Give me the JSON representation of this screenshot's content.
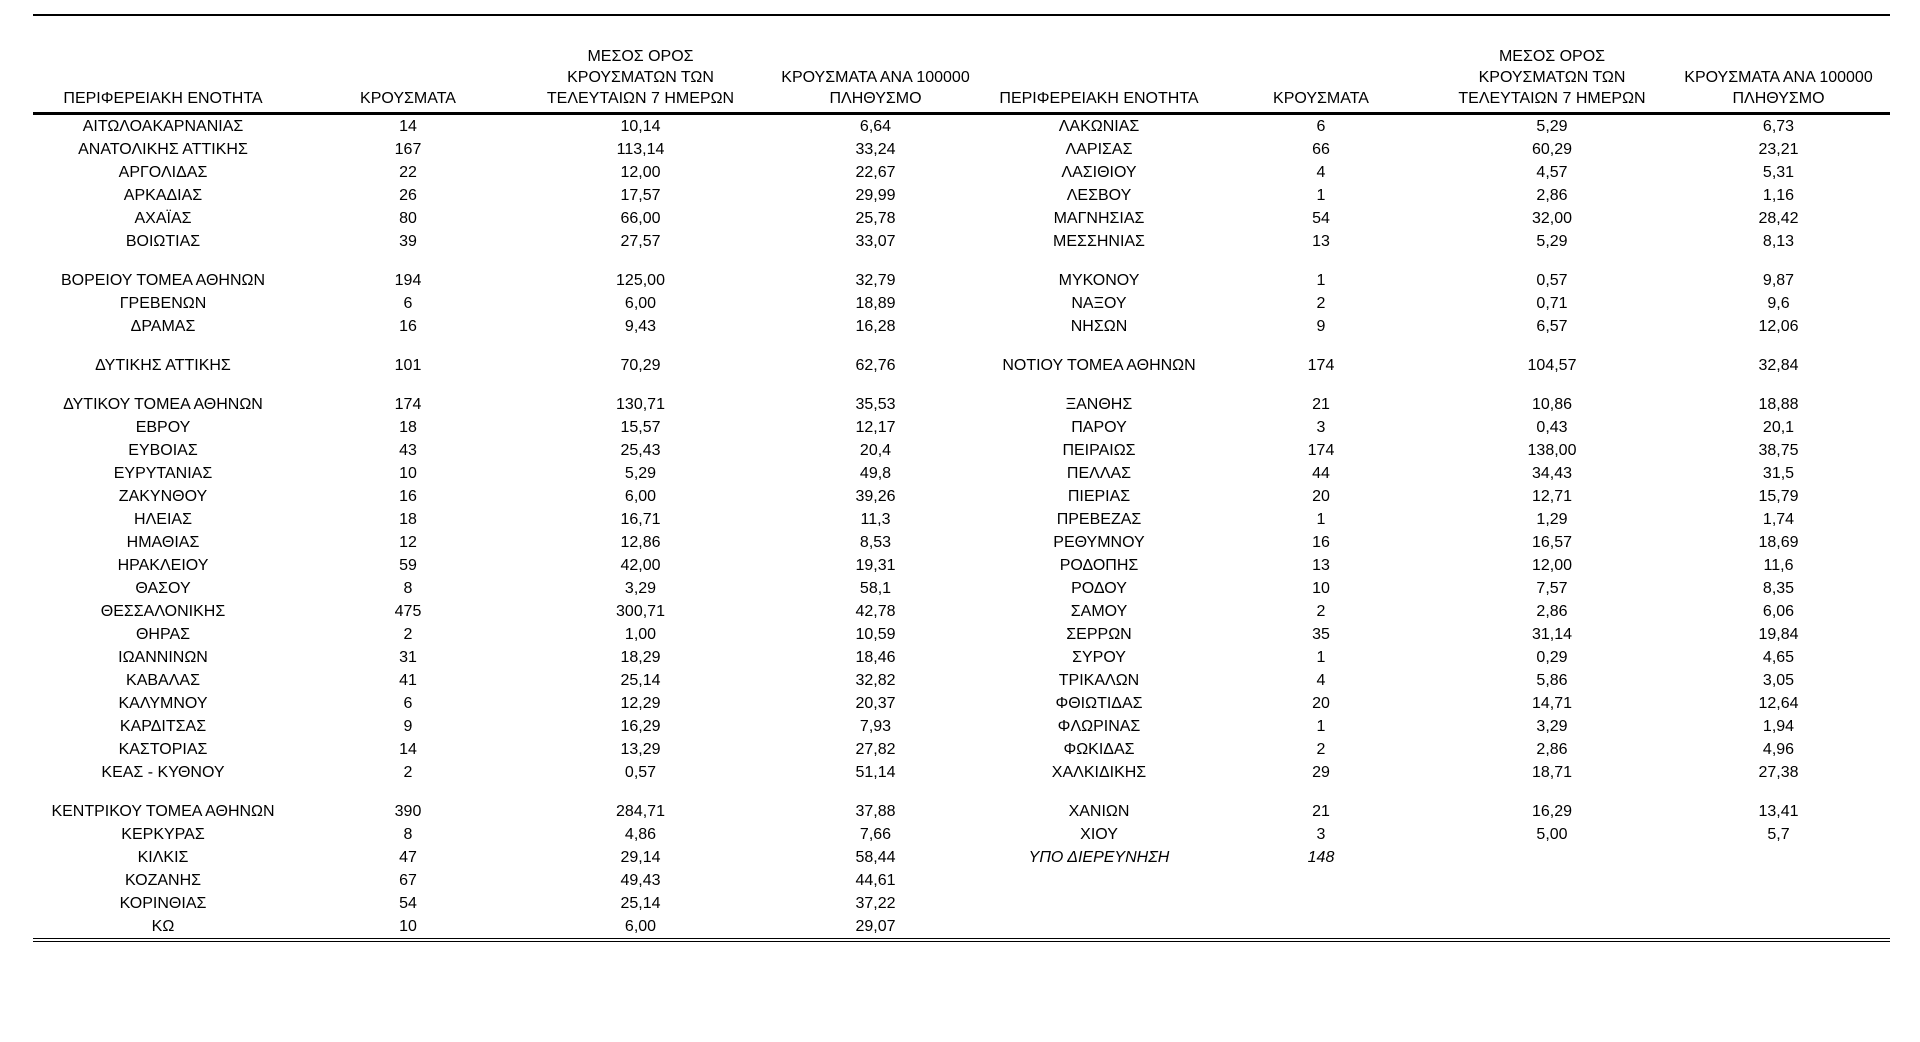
{
  "document": {
    "language": "el",
    "description_colors": {
      "text": "#000000",
      "background": "#ffffff",
      "border": "#000000"
    }
  },
  "table": {
    "column_headers": {
      "region": "ΠΕΡΙΦΕΡΕΙΑΚΗ ΕΝΟΤΗΤΑ",
      "cases": "ΚΡΟΥΣΜΑΤΑ",
      "avg7_lines": [
        "ΜΕΣΟΣ ΟΡΟΣ",
        "ΚΡΟΥΣΜΑΤΩΝ ΤΩΝ",
        "ΤΕΛΕΥΤΑΙΩΝ 7 ΗΜΕΡΩΝ"
      ],
      "per100k_lines": [
        "ΚΡΟΥΣΜΑΤΑ ΑΝΑ 100000",
        "ΠΛΗΘΥΣΜΟ"
      ]
    },
    "rows": [
      {
        "c": [
          "ΑΙΤΩΛΟΑΚΑΡΝΑΝΙΑΣ",
          "14",
          "10,14",
          "6,64",
          "ΛΑΚΩΝΙΑΣ",
          "6",
          "5,29",
          "6,73"
        ]
      },
      {
        "c": [
          "ΑΝΑΤΟΛΙΚΗΣ ΑΤΤΙΚΗΣ",
          "167",
          "113,14",
          "33,24",
          "ΛΑΡΙΣΑΣ",
          "66",
          "60,29",
          "23,21"
        ]
      },
      {
        "c": [
          "ΑΡΓΟΛΙΔΑΣ",
          "22",
          "12,00",
          "22,67",
          "ΛΑΣΙΘΙΟΥ",
          "4",
          "4,57",
          "5,31"
        ]
      },
      {
        "c": [
          "ΑΡΚΑΔΙΑΣ",
          "26",
          "17,57",
          "29,99",
          "ΛΕΣΒΟΥ",
          "1",
          "2,86",
          "1,16"
        ]
      },
      {
        "c": [
          "ΑΧΑΪΑΣ",
          "80",
          "66,00",
          "25,78",
          "ΜΑΓΝΗΣΙΑΣ",
          "54",
          "32,00",
          "28,42"
        ]
      },
      {
        "c": [
          "ΒΟΙΩΤΙΑΣ",
          "39",
          "27,57",
          "33,07",
          "ΜΕΣΣΗΝΙΑΣ",
          "13",
          "5,29",
          "8,13"
        ]
      },
      {
        "spacer": true
      },
      {
        "c": [
          "ΒΟΡΕΙΟΥ ΤΟΜΕΑ ΑΘΗΝΩΝ",
          "194",
          "125,00",
          "32,79",
          "ΜΥΚΟΝΟΥ",
          "1",
          "0,57",
          "9,87"
        ]
      },
      {
        "c": [
          "ΓΡΕΒΕΝΩΝ",
          "6",
          "6,00",
          "18,89",
          "ΝΑΞΟΥ",
          "2",
          "0,71",
          "9,6"
        ]
      },
      {
        "c": [
          "ΔΡΑΜΑΣ",
          "16",
          "9,43",
          "16,28",
          "ΝΗΣΩΝ",
          "9",
          "6,57",
          "12,06"
        ]
      },
      {
        "spacer": true
      },
      {
        "c": [
          "ΔΥΤΙΚΗΣ ΑΤΤΙΚΗΣ",
          "101",
          "70,29",
          "62,76",
          "ΝΟΤΙΟΥ ΤΟΜΕΑ ΑΘΗΝΩΝ",
          "174",
          "104,57",
          "32,84"
        ]
      },
      {
        "spacer": true
      },
      {
        "c": [
          "ΔΥΤΙΚΟΥ ΤΟΜΕΑ ΑΘΗΝΩΝ",
          "174",
          "130,71",
          "35,53",
          "ΞΑΝΘΗΣ",
          "21",
          "10,86",
          "18,88"
        ]
      },
      {
        "c": [
          "ΕΒΡΟΥ",
          "18",
          "15,57",
          "12,17",
          "ΠΑΡΟΥ",
          "3",
          "0,43",
          "20,1"
        ]
      },
      {
        "c": [
          "ΕΥΒΟΙΑΣ",
          "43",
          "25,43",
          "20,4",
          "ΠΕΙΡΑΙΩΣ",
          "174",
          "138,00",
          "38,75"
        ]
      },
      {
        "c": [
          "ΕΥΡΥΤΑΝΙΑΣ",
          "10",
          "5,29",
          "49,8",
          "ΠΕΛΛΑΣ",
          "44",
          "34,43",
          "31,5"
        ]
      },
      {
        "c": [
          "ΖΑΚΥΝΘΟΥ",
          "16",
          "6,00",
          "39,26",
          "ΠΙΕΡΙΑΣ",
          "20",
          "12,71",
          "15,79"
        ]
      },
      {
        "c": [
          "ΗΛΕΙΑΣ",
          "18",
          "16,71",
          "11,3",
          "ΠΡΕΒΕΖΑΣ",
          "1",
          "1,29",
          "1,74"
        ]
      },
      {
        "c": [
          "ΗΜΑΘΙΑΣ",
          "12",
          "12,86",
          "8,53",
          "ΡΕΘΥΜΝΟΥ",
          "16",
          "16,57",
          "18,69"
        ]
      },
      {
        "c": [
          "ΗΡΑΚΛΕΙΟΥ",
          "59",
          "42,00",
          "19,31",
          "ΡΟΔΟΠΗΣ",
          "13",
          "12,00",
          "11,6"
        ]
      },
      {
        "c": [
          "ΘΑΣΟΥ",
          "8",
          "3,29",
          "58,1",
          "ΡΟΔΟΥ",
          "10",
          "7,57",
          "8,35"
        ]
      },
      {
        "c": [
          "ΘΕΣΣΑΛΟΝΙΚΗΣ",
          "475",
          "300,71",
          "42,78",
          "ΣΑΜΟΥ",
          "2",
          "2,86",
          "6,06"
        ]
      },
      {
        "c": [
          "ΘΗΡΑΣ",
          "2",
          "1,00",
          "10,59",
          "ΣΕΡΡΩΝ",
          "35",
          "31,14",
          "19,84"
        ]
      },
      {
        "c": [
          "ΙΩΑΝΝΙΝΩΝ",
          "31",
          "18,29",
          "18,46",
          "ΣΥΡΟΥ",
          "1",
          "0,29",
          "4,65"
        ]
      },
      {
        "c": [
          "ΚΑΒΑΛΑΣ",
          "41",
          "25,14",
          "32,82",
          "ΤΡΙΚΑΛΩΝ",
          "4",
          "5,86",
          "3,05"
        ]
      },
      {
        "c": [
          "ΚΑΛΥΜΝΟΥ",
          "6",
          "12,29",
          "20,37",
          "ΦΘΙΩΤΙΔΑΣ",
          "20",
          "14,71",
          "12,64"
        ]
      },
      {
        "c": [
          "ΚΑΡΔΙΤΣΑΣ",
          "9",
          "16,29",
          "7,93",
          "ΦΛΩΡΙΝΑΣ",
          "1",
          "3,29",
          "1,94"
        ]
      },
      {
        "c": [
          "ΚΑΣΤΟΡΙΑΣ",
          "14",
          "13,29",
          "27,82",
          "ΦΩΚΙΔΑΣ",
          "2",
          "2,86",
          "4,96"
        ]
      },
      {
        "c": [
          "ΚΕΑΣ - ΚΥΘΝΟΥ",
          "2",
          "0,57",
          "51,14",
          "ΧΑΛΚΙΔΙΚΗΣ",
          "29",
          "18,71",
          "27,38"
        ]
      },
      {
        "spacer": true
      },
      {
        "c": [
          "ΚΕΝΤΡΙΚΟΥ ΤΟΜΕΑ ΑΘΗΝΩΝ",
          "390",
          "284,71",
          "37,88",
          "ΧΑΝΙΩΝ",
          "21",
          "16,29",
          "13,41"
        ]
      },
      {
        "c": [
          "ΚΕΡΚΥΡΑΣ",
          "8",
          "4,86",
          "7,66",
          "ΧΙΟΥ",
          "3",
          "5,00",
          "5,7"
        ]
      },
      {
        "c": [
          "ΚΙΛΚΙΣ",
          "47",
          "29,14",
          "58,44",
          "ΥΠΟ ΔΙΕΡΕΥΝΗΣΗ",
          "148",
          "",
          ""
        ],
        "it": true
      },
      {
        "c": [
          "ΚΟΖΑΝΗΣ",
          "67",
          "49,43",
          "44,61",
          "",
          "",
          "",
          ""
        ]
      },
      {
        "c": [
          "ΚΟΡΙΝΘΙΑΣ",
          "54",
          "25,14",
          "37,22",
          "",
          "",
          "",
          ""
        ]
      },
      {
        "c": [
          "ΚΩ",
          "10",
          "6,00",
          "29,07",
          "",
          "",
          "",
          ""
        ]
      }
    ]
  }
}
